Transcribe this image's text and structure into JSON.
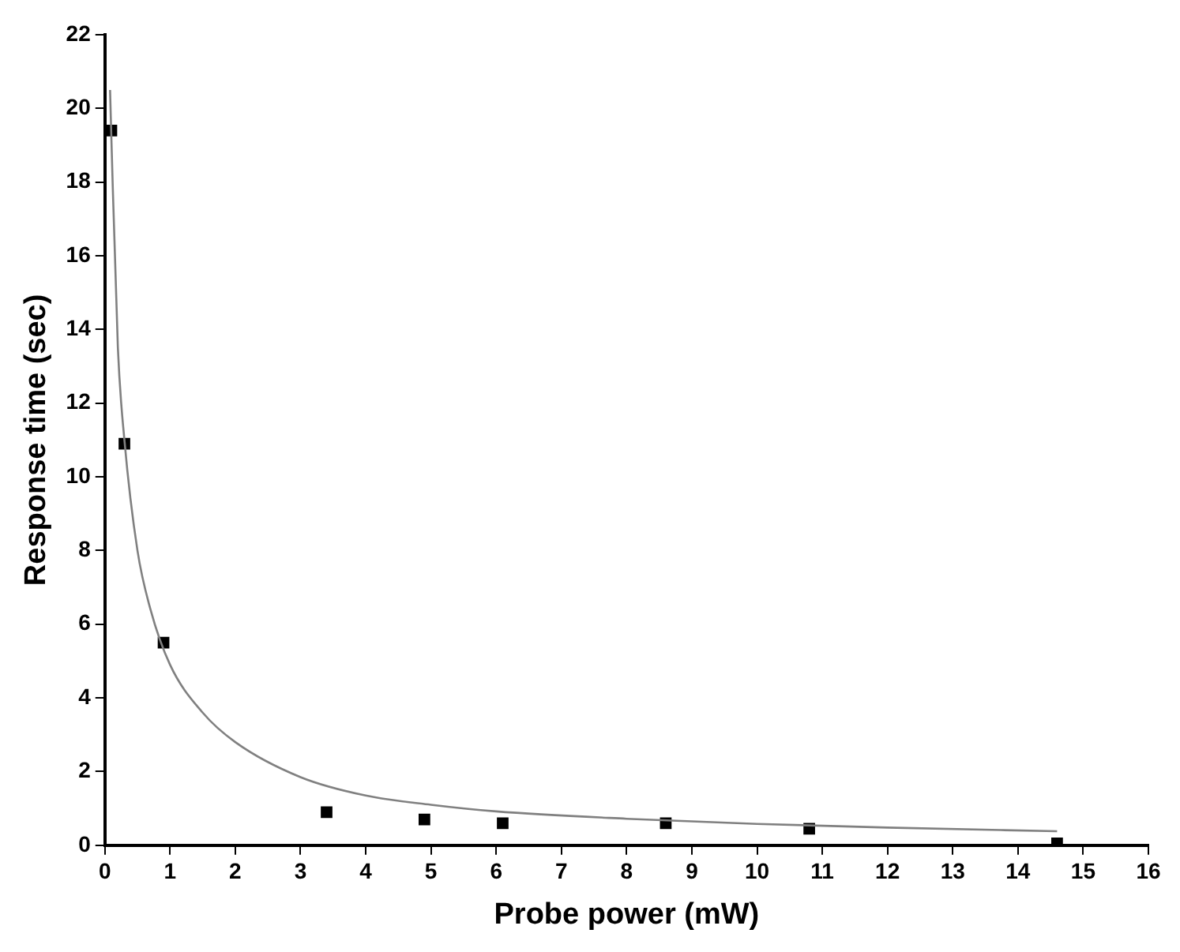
{
  "chart_data": {
    "type": "scatter",
    "xlabel": "Probe power (mW)",
    "ylabel": "Response time (sec)",
    "xlim": [
      0,
      16
    ],
    "xticks": [
      0,
      1,
      2,
      3,
      4,
      5,
      6,
      7,
      8,
      9,
      10,
      11,
      12,
      13,
      14,
      15,
      16
    ],
    "ylim": [
      0,
      22
    ],
    "yticks": [
      0,
      2,
      4,
      6,
      8,
      10,
      12,
      14,
      16,
      18,
      20,
      22
    ],
    "grid": false,
    "legend": false,
    "marker": "square",
    "series": [
      {
        "type": "scatter",
        "color": "#000000",
        "x": [
          0.1,
          0.3,
          0.9,
          3.4,
          4.9,
          6.1,
          8.6,
          10.8,
          14.6
        ],
        "values": [
          19.4,
          10.9,
          5.5,
          0.9,
          0.7,
          0.6,
          0.6,
          0.45,
          0.05
        ]
      },
      {
        "type": "line",
        "color": "#808080",
        "marker": "none",
        "line_style": "solid",
        "x": [
          0.08,
          0.1,
          0.2,
          0.3,
          0.5,
          0.7,
          1,
          1.5,
          2,
          3,
          4,
          5,
          6,
          8,
          10,
          12,
          14.6
        ],
        "values": [
          20.5,
          19.2,
          13.5,
          11,
          8,
          6.4,
          4.9,
          3.6,
          2.8,
          1.85,
          1.35,
          1.1,
          0.92,
          0.72,
          0.58,
          0.48,
          0.38
        ]
      }
    ]
  }
}
